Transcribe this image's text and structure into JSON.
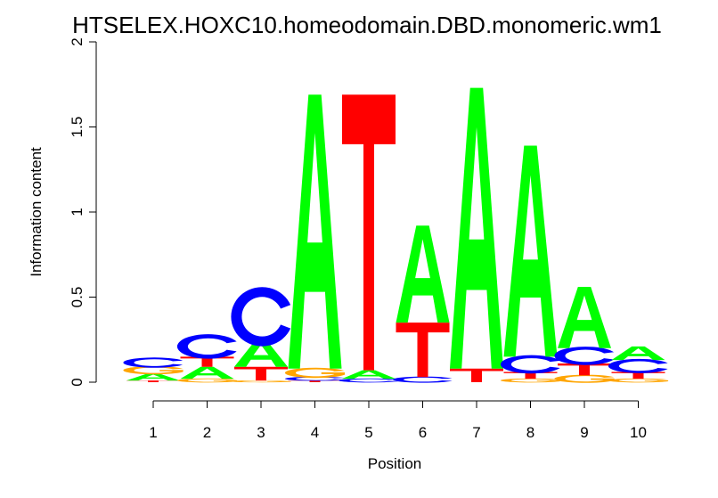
{
  "chart_data": {
    "type": "sequence-logo",
    "title": "HTSELEX.HOXC10.homeodomain.DBD.monomeric.wm1",
    "xlabel": "Position",
    "ylabel": "Information content",
    "ylim": [
      0,
      2
    ],
    "yticks": [
      "0",
      "0.5",
      "1",
      "1.5",
      "2"
    ],
    "positions": [
      "1",
      "2",
      "3",
      "4",
      "5",
      "6",
      "7",
      "8",
      "9",
      "10"
    ],
    "colors": {
      "A": "#00ff00",
      "C": "#0000ff",
      "G": "#ffa500",
      "T": "#ff0000"
    },
    "stacks": [
      [
        {
          "letter": "T",
          "bottom": 0.0,
          "top": 0.01
        },
        {
          "letter": "A",
          "bottom": 0.01,
          "top": 0.05
        },
        {
          "letter": "G",
          "bottom": 0.05,
          "top": 0.09
        },
        {
          "letter": "C",
          "bottom": 0.09,
          "top": 0.14
        }
      ],
      [
        {
          "letter": "G",
          "bottom": 0.0,
          "top": 0.02
        },
        {
          "letter": "A",
          "bottom": 0.02,
          "top": 0.09
        },
        {
          "letter": "T",
          "bottom": 0.09,
          "top": 0.15
        },
        {
          "letter": "C",
          "bottom": 0.15,
          "top": 0.27
        }
      ],
      [
        {
          "letter": "G",
          "bottom": 0.0,
          "top": 0.01
        },
        {
          "letter": "T",
          "bottom": 0.01,
          "top": 0.09
        },
        {
          "letter": "A",
          "bottom": 0.09,
          "top": 0.24
        },
        {
          "letter": "C",
          "bottom": 0.24,
          "top": 0.53
        }
      ],
      [
        {
          "letter": "T",
          "bottom": 0.0,
          "top": 0.01
        },
        {
          "letter": "C",
          "bottom": 0.01,
          "top": 0.03
        },
        {
          "letter": "G",
          "bottom": 0.03,
          "top": 0.08
        },
        {
          "letter": "A",
          "bottom": 0.08,
          "top": 1.69
        }
      ],
      [
        {
          "letter": "C",
          "bottom": 0.0,
          "top": 0.02
        },
        {
          "letter": "A",
          "bottom": 0.02,
          "top": 0.07
        },
        {
          "letter": "T",
          "bottom": 0.07,
          "top": 1.69
        }
      ],
      [
        {
          "letter": "C",
          "bottom": 0.0,
          "top": 0.03
        },
        {
          "letter": "T",
          "bottom": 0.03,
          "top": 0.35
        },
        {
          "letter": "A",
          "bottom": 0.35,
          "top": 0.92
        }
      ],
      [
        {
          "letter": "T",
          "bottom": 0.0,
          "top": 0.08
        },
        {
          "letter": "A",
          "bottom": 0.08,
          "top": 1.73
        }
      ],
      [
        {
          "letter": "G",
          "bottom": 0.0,
          "top": 0.02
        },
        {
          "letter": "T",
          "bottom": 0.02,
          "top": 0.06
        },
        {
          "letter": "C",
          "bottom": 0.06,
          "top": 0.15
        },
        {
          "letter": "A",
          "bottom": 0.15,
          "top": 1.39
        }
      ],
      [
        {
          "letter": "G",
          "bottom": 0.0,
          "top": 0.04
        },
        {
          "letter": "T",
          "bottom": 0.04,
          "top": 0.11
        },
        {
          "letter": "C",
          "bottom": 0.11,
          "top": 0.2
        },
        {
          "letter": "A",
          "bottom": 0.2,
          "top": 0.56
        }
      ],
      [
        {
          "letter": "G",
          "bottom": 0.0,
          "top": 0.02
        },
        {
          "letter": "T",
          "bottom": 0.02,
          "top": 0.06
        },
        {
          "letter": "C",
          "bottom": 0.06,
          "top": 0.13
        },
        {
          "letter": "A",
          "bottom": 0.13,
          "top": 0.21
        }
      ]
    ]
  }
}
